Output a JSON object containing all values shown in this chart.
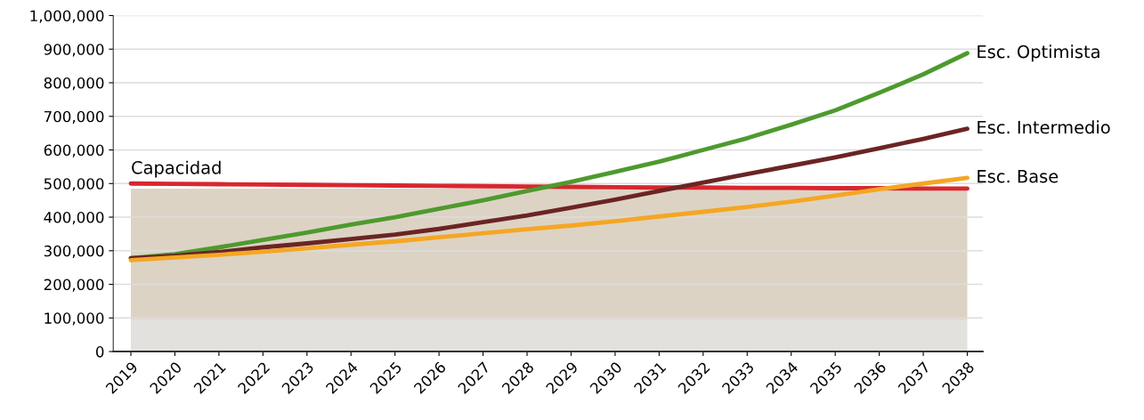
{
  "chart_data": {
    "type": "line",
    "categories": [
      "2019",
      "2020",
      "2021",
      "2022",
      "2023",
      "2024",
      "2025",
      "2026",
      "2027",
      "2028",
      "2029",
      "2030",
      "2031",
      "2032",
      "2033",
      "2034",
      "2035",
      "2036",
      "2037",
      "2038"
    ],
    "series": [
      {
        "name": "Capacidad",
        "color": "#d9262e",
        "values": [
          500000,
          499000,
          498000,
          497000,
          496000,
          495000,
          494000,
          493000,
          492000,
          491000,
          490000,
          489000,
          488000,
          488000,
          487000,
          487000,
          486000,
          486000,
          485000,
          485000
        ]
      },
      {
        "name": "Esc. Optimista",
        "color": "#4e9a2e",
        "values": [
          278000,
          290000,
          310000,
          332000,
          354000,
          378000,
          400000,
          425000,
          450000,
          478000,
          505000,
          535000,
          565000,
          600000,
          635000,
          675000,
          718000,
          770000,
          825000,
          888000
        ]
      },
      {
        "name": "Esc. Intermedio",
        "color": "#6b2424",
        "values": [
          278000,
          285000,
          296000,
          310000,
          322000,
          335000,
          348000,
          365000,
          385000,
          405000,
          428000,
          452000,
          478000,
          503000,
          528000,
          553000,
          578000,
          605000,
          633000,
          663000
        ]
      },
      {
        "name": "Esc. Base",
        "color": "#f5a623",
        "values": [
          272000,
          280000,
          288000,
          297000,
          307000,
          318000,
          328000,
          340000,
          352000,
          364000,
          375000,
          388000,
          402000,
          416000,
          430000,
          446000,
          464000,
          483000,
          500000,
          517000
        ]
      }
    ],
    "bands": [
      {
        "axis": "y",
        "from": 0,
        "to": 95000,
        "color": "#e3e1de"
      },
      {
        "axis": "y",
        "from": 95000,
        "to": 485000,
        "color": "#ddd3c4"
      }
    ],
    "ylim": [
      0,
      1000000
    ],
    "yticks": [
      {
        "value": 0,
        "label": "0"
      },
      {
        "value": 100000,
        "label": "100,000"
      },
      {
        "value": 200000,
        "label": "200,000"
      },
      {
        "value": 300000,
        "label": "300,000"
      },
      {
        "value": 400000,
        "label": "400,000"
      },
      {
        "value": 500000,
        "label": "500,000"
      },
      {
        "value": 600000,
        "label": "600,000"
      },
      {
        "value": 700000,
        "label": "700,000"
      },
      {
        "value": 800000,
        "label": "800,000"
      },
      {
        "value": 900000,
        "label": "900,000"
      },
      {
        "value": 1000000,
        "label": "1,000,000"
      }
    ],
    "grid": "y",
    "legend": false,
    "marker": "none",
    "line_style": "solid"
  }
}
